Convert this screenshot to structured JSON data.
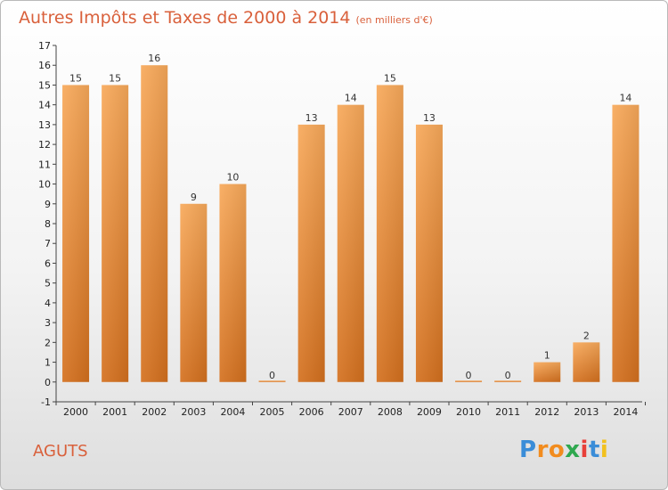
{
  "title": "Autres Impôts et Taxes de 2000 à 2014",
  "subtitle": "(en milliers d'€)",
  "commune": "AGUTS",
  "logo": {
    "letters": [
      "P",
      "r",
      "o",
      "x",
      "i",
      "t",
      "i"
    ],
    "colors": [
      "#3a8dd8",
      "#f28c1e",
      "#f28c1e",
      "#2fa84f",
      "#e8403a",
      "#3a8dd8",
      "#f2c11e"
    ]
  },
  "chart_data": {
    "type": "bar",
    "categories": [
      "2000",
      "2001",
      "2002",
      "2003",
      "2004",
      "2005",
      "2006",
      "2007",
      "2008",
      "2009",
      "2010",
      "2011",
      "2012",
      "2013",
      "2014"
    ],
    "values": [
      15,
      15,
      16,
      9,
      10,
      0,
      13,
      14,
      15,
      13,
      0,
      0,
      1,
      2,
      14
    ],
    "ylim": [
      -1,
      17
    ],
    "yticks": [
      -1,
      0,
      1,
      2,
      3,
      4,
      5,
      6,
      7,
      8,
      9,
      10,
      11,
      12,
      13,
      14,
      15,
      16,
      17
    ],
    "bar_color": "#f5a04c",
    "grid": false
  }
}
